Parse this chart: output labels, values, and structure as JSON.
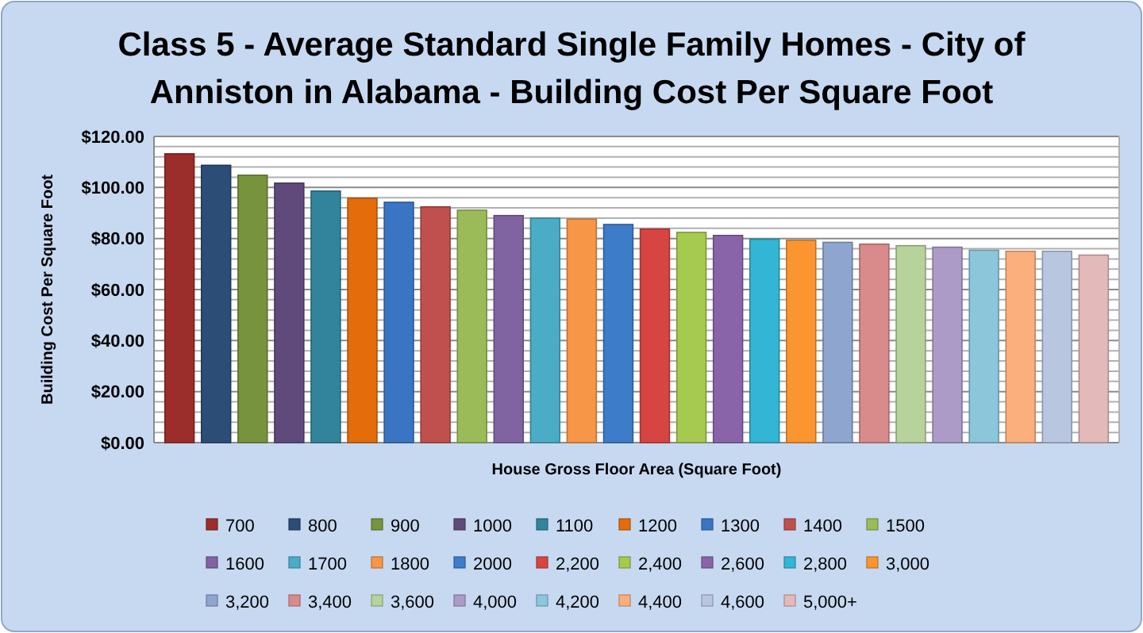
{
  "chart_data": {
    "type": "bar",
    "title": "Class 5 - Average Standard Single Family Homes  - City of Anniston in Alabama - Building Cost Per Square Foot",
    "xlabel": "House Gross Floor Area (Square Foot)",
    "ylabel": "Building Cost Per Square Foot",
    "categories": [
      null
    ],
    "ylim": [
      0,
      120
    ],
    "yticks": [
      {
        "value": 0,
        "label": "$0.00"
      },
      {
        "value": 4,
        "label": null
      },
      {
        "value": 8,
        "label": null
      },
      {
        "value": 12,
        "label": null
      },
      {
        "value": 16,
        "label": null
      },
      {
        "value": 20,
        "label": "$20.00"
      },
      {
        "value": 24,
        "label": null
      },
      {
        "value": 28,
        "label": null
      },
      {
        "value": 32,
        "label": null
      },
      {
        "value": 36,
        "label": null
      },
      {
        "value": 40,
        "label": "$40.00"
      },
      {
        "value": 44,
        "label": null
      },
      {
        "value": 48,
        "label": null
      },
      {
        "value": 52,
        "label": null
      },
      {
        "value": 56,
        "label": null
      },
      {
        "value": 60,
        "label": "$60.00"
      },
      {
        "value": 64,
        "label": null
      },
      {
        "value": 68,
        "label": null
      },
      {
        "value": 72,
        "label": null
      },
      {
        "value": 76,
        "label": null
      },
      {
        "value": 80,
        "label": "$80.00"
      },
      {
        "value": 84,
        "label": null
      },
      {
        "value": 88,
        "label": null
      },
      {
        "value": 92,
        "label": null
      },
      {
        "value": 96,
        "label": null
      },
      {
        "value": 100,
        "label": "$100.00"
      },
      {
        "value": 104,
        "label": null
      },
      {
        "value": 108,
        "label": null
      },
      {
        "value": 112,
        "label": null
      },
      {
        "value": 116,
        "label": null
      },
      {
        "value": 120,
        "label": "$120.00"
      }
    ],
    "grid": "y",
    "legend": "bottom",
    "series": [
      {
        "name": "700",
        "color": "#9b2d2a",
        "values": [
          113.2
        ]
      },
      {
        "name": "800",
        "color": "#2c4d75",
        "values": [
          108.7
        ]
      },
      {
        "name": "900",
        "color": "#77933c",
        "values": [
          104.8
        ]
      },
      {
        "name": "1000",
        "color": "#5f4a7b",
        "values": [
          101.7
        ]
      },
      {
        "name": "1100",
        "color": "#31849b",
        "values": [
          98.6
        ]
      },
      {
        "name": "1200",
        "color": "#e46c0a",
        "values": [
          95.8
        ]
      },
      {
        "name": "1300",
        "color": "#3a75c4",
        "values": [
          94.2
        ]
      },
      {
        "name": "1400",
        "color": "#c0504d",
        "values": [
          92.4
        ]
      },
      {
        "name": "1500",
        "color": "#9bbb59",
        "values": [
          91.1
        ]
      },
      {
        "name": "1600",
        "color": "#8064a2",
        "values": [
          89.0
        ]
      },
      {
        "name": "1700",
        "color": "#4bacc6",
        "values": [
          88.0
        ]
      },
      {
        "name": "1800",
        "color": "#f79646",
        "values": [
          87.6
        ]
      },
      {
        "name": "2000",
        "color": "#3d7cc9",
        "values": [
          85.5
        ]
      },
      {
        "name": "2,200",
        "color": "#d64541",
        "values": [
          83.7
        ]
      },
      {
        "name": "2,400",
        "color": "#a6c94f",
        "values": [
          82.4
        ]
      },
      {
        "name": "2,600",
        "color": "#8a64a8",
        "values": [
          81.2
        ]
      },
      {
        "name": "2,800",
        "color": "#33b5d6",
        "values": [
          79.7
        ]
      },
      {
        "name": "3,000",
        "color": "#fa9530",
        "values": [
          79.3
        ]
      },
      {
        "name": "3,200",
        "color": "#8ea5cf",
        "values": [
          78.5
        ]
      },
      {
        "name": "3,400",
        "color": "#d98a8a",
        "values": [
          77.8
        ]
      },
      {
        "name": "3,600",
        "color": "#b7d29a",
        "values": [
          77.2
        ]
      },
      {
        "name": "4,000",
        "color": "#ab9bc6",
        "values": [
          76.6
        ]
      },
      {
        "name": "4,200",
        "color": "#8cc6db",
        "values": [
          75.4
        ]
      },
      {
        "name": "4,400",
        "color": "#fbaf7c",
        "values": [
          75.0
        ]
      },
      {
        "name": "4,600",
        "color": "#b8c6e0",
        "values": [
          75.0
        ]
      },
      {
        "name": "5,000+",
        "color": "#e4b9b9",
        "values": [
          73.5
        ]
      }
    ]
  }
}
